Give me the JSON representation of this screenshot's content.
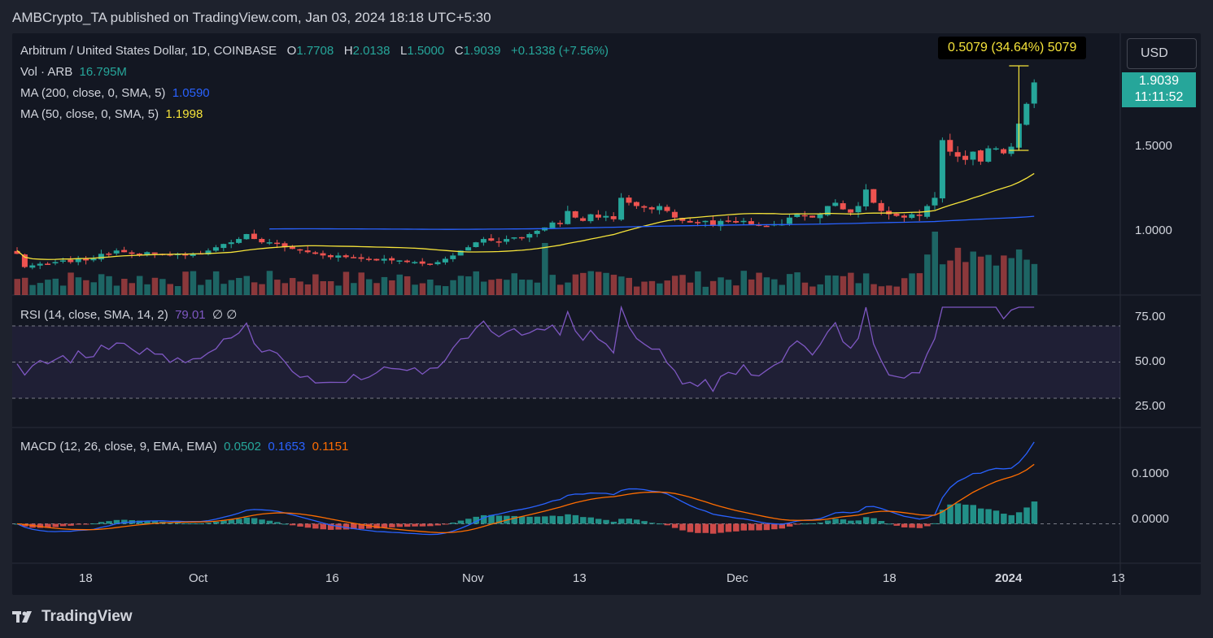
{
  "header": {
    "published_line": "AMBCrypto_TA published on TradingView.com, Jan 03, 2024 18:18 UTC+5:30"
  },
  "legend": {
    "symbol": "Arbitrum / United States Dollar, 1D, COINBASE",
    "o_label": "O",
    "o_value": "1.7708",
    "h_label": "H",
    "h_value": "2.0138",
    "l_label": "L",
    "l_value": "1.5000",
    "c_label": "C",
    "c_value": "1.9039",
    "change": "+0.1338 (+7.56%)",
    "vol_label": "Vol · ARB",
    "vol_value": "16.795M",
    "ma200_label": "MA (200, close, 0, SMA, 5)",
    "ma200_value": "1.0590",
    "ma50_label": "MA (50, close, 0, SMA, 5)",
    "ma50_value": "1.1998",
    "rsi_label": "RSI (14, close, SMA, 14, 2)",
    "rsi_value": "79.01",
    "rsi_extra": "∅  ∅",
    "macd_label": "MACD (12, 26, close, 9, EMA, EMA)",
    "macd_hist": "0.0502",
    "macd_line": "0.1653",
    "macd_signal": "0.1151"
  },
  "price_scale": {
    "currency_button": "USD",
    "last_price": "1.9039",
    "countdown": "11:11:52",
    "ticks": [
      "1.5000",
      "1.0000"
    ]
  },
  "measure_tool": {
    "text": "0.5079 (34.64%) 5079"
  },
  "rsi_scale": {
    "ticks": [
      "75.00",
      "50.00",
      "25.00"
    ]
  },
  "macd_scale": {
    "ticks": [
      "0.1000",
      "0.0000"
    ]
  },
  "time_axis": {
    "labels": [
      "18",
      "Oct",
      "16",
      "Nov",
      "13",
      "Dec",
      "18",
      "2024",
      "13"
    ]
  },
  "footer": {
    "logo_text": "TradingView"
  },
  "colors": {
    "up": "#26a69a",
    "down": "#ef5350",
    "ma200": "#2962ff",
    "ma50": "#f5e33a",
    "rsi": "#7e57c2",
    "macd": "#2962ff",
    "signal": "#ff6d00",
    "background": "#131722"
  },
  "chart_data": {
    "type": "candlestick",
    "title": "Arbitrum / United States Dollar, 1D, COINBASE",
    "price_range": [
      0.62,
      2.05
    ],
    "closes": [
      0.86,
      0.78,
      0.79,
      0.8,
      0.8,
      0.81,
      0.82,
      0.81,
      0.83,
      0.82,
      0.83,
      0.86,
      0.86,
      0.88,
      0.87,
      0.86,
      0.86,
      0.87,
      0.86,
      0.86,
      0.85,
      0.86,
      0.85,
      0.86,
      0.86,
      0.88,
      0.9,
      0.92,
      0.93,
      0.95,
      0.98,
      0.95,
      0.93,
      0.93,
      0.92,
      0.9,
      0.89,
      0.88,
      0.87,
      0.86,
      0.85,
      0.84,
      0.85,
      0.84,
      0.84,
      0.83,
      0.83,
      0.82,
      0.83,
      0.82,
      0.82,
      0.81,
      0.81,
      0.8,
      0.8,
      0.81,
      0.83,
      0.85,
      0.88,
      0.9,
      0.93,
      0.95,
      0.94,
      0.93,
      0.95,
      0.96,
      0.96,
      0.98,
      1.0,
      1.02,
      1.05,
      1.04,
      1.12,
      1.08,
      1.06,
      1.1,
      1.08,
      1.09,
      1.07,
      1.2,
      1.17,
      1.15,
      1.14,
      1.13,
      1.15,
      1.12,
      1.08,
      1.06,
      1.05,
      1.05,
      1.06,
      1.03,
      1.06,
      1.06,
      1.05,
      1.06,
      1.04,
      1.03,
      1.03,
      1.04,
      1.04,
      1.08,
      1.1,
      1.09,
      1.08,
      1.1,
      1.15,
      1.17,
      1.13,
      1.11,
      1.15,
      1.25,
      1.17,
      1.12,
      1.1,
      1.09,
      1.08,
      1.1,
      1.09,
      1.15,
      1.2,
      1.55,
      1.48,
      1.45,
      1.43,
      1.48,
      1.42,
      1.5,
      1.5,
      1.47,
      1.51,
      1.65,
      1.77,
      1.9
    ],
    "volume_axis": "Vol · ARB",
    "volume_last": "16.795M",
    "last_close": 1.9039,
    "ma200_last": 1.059,
    "ma50_last": 1.1998,
    "rsi_last": 79.01,
    "rsi_range": [
      0,
      100
    ],
    "macd_last": {
      "histogram": 0.0502,
      "macd": 0.1653,
      "signal": 0.1151
    },
    "macd_range": [
      -0.06,
      0.17
    ],
    "x_labels": [
      "18",
      "Oct",
      "16",
      "Nov",
      "13",
      "Dec",
      "18",
      "2024",
      "13"
    ]
  }
}
